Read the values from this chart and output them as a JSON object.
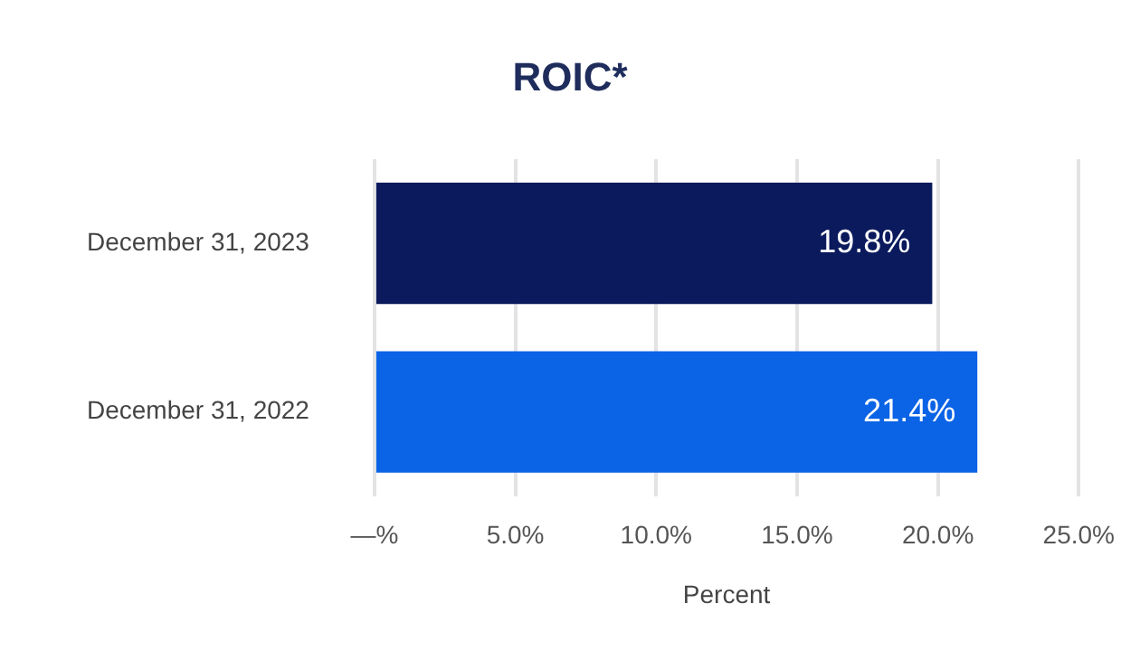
{
  "chart_data": {
    "type": "bar",
    "orientation": "horizontal",
    "title": "ROIC*",
    "xlabel": "Percent",
    "categories": [
      "December 31, 2023",
      "December 31, 2022"
    ],
    "values": [
      19.8,
      21.4
    ],
    "colors": [
      "#0a1a5c",
      "#0b63e5"
    ],
    "value_labels": [
      "19.8%",
      "21.4%"
    ],
    "xlim": [
      0,
      25
    ],
    "xticks": [
      {
        "value": 0,
        "label": "—%"
      },
      {
        "value": 5,
        "label": "5.0%"
      },
      {
        "value": 10,
        "label": "10.0%"
      },
      {
        "value": 15,
        "label": "15.0%"
      },
      {
        "value": 20,
        "label": "20.0%"
      },
      {
        "value": 25,
        "label": "25.0%"
      }
    ],
    "grid": "x",
    "legend": false
  }
}
